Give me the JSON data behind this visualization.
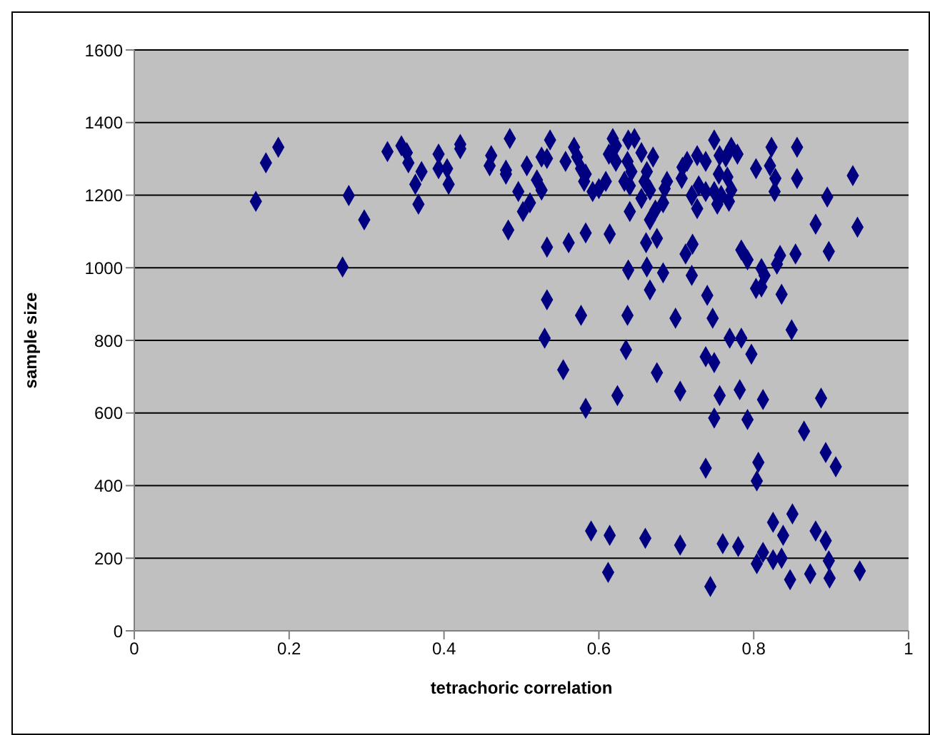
{
  "chart_data": {
    "type": "scatter",
    "xlabel": "tetrachoric correlation",
    "ylabel": "sample size",
    "xlim": [
      0,
      1
    ],
    "xticks": [
      0,
      0.2,
      0.4,
      0.6,
      0.8,
      1
    ],
    "ylim": [
      0,
      1600
    ],
    "yticks": [
      0,
      200,
      400,
      600,
      800,
      1000,
      1200,
      1400,
      1600
    ],
    "grid": "y",
    "marker": "diamond",
    "legend": false,
    "series": [
      {
        "color": "#000080",
        "x": [
          0.157,
          0.17,
          0.186,
          0.277,
          0.297,
          0.269,
          0.327,
          0.345,
          0.352,
          0.354,
          0.371,
          0.363,
          0.367,
          0.393,
          0.393,
          0.406,
          0.404,
          0.421,
          0.421,
          0.461,
          0.459,
          0.48,
          0.48,
          0.485,
          0.483,
          0.496,
          0.502,
          0.511,
          0.507,
          0.52,
          0.526,
          0.526,
          0.533,
          0.537,
          0.533,
          0.533,
          0.557,
          0.568,
          0.572,
          0.577,
          0.583,
          0.581,
          0.592,
          0.6,
          0.609,
          0.618,
          0.622,
          0.638,
          0.646,
          0.613,
          0.622,
          0.637,
          0.642,
          0.633,
          0.64,
          0.655,
          0.67,
          0.662,
          0.659,
          0.666,
          0.655,
          0.64,
          0.683,
          0.673,
          0.666,
          0.688,
          0.685,
          0.707,
          0.708,
          0.714,
          0.727,
          0.738,
          0.749,
          0.72,
          0.729,
          0.727,
          0.738,
          0.749,
          0.753,
          0.758,
          0.768,
          0.771,
          0.755,
          0.766,
          0.756,
          0.764,
          0.771,
          0.779,
          0.803,
          0.821,
          0.823,
          0.828,
          0.827,
          0.856,
          0.856,
          0.928,
          0.895,
          0.88,
          0.934,
          0.897,
          0.561,
          0.583,
          0.614,
          0.661,
          0.675,
          0.638,
          0.662,
          0.683,
          0.666,
          0.712,
          0.721,
          0.72,
          0.74,
          0.784,
          0.792,
          0.81,
          0.814,
          0.803,
          0.81,
          0.83,
          0.834,
          0.854,
          0.836,
          0.577,
          0.637,
          0.699,
          0.747,
          0.849,
          0.769,
          0.784,
          0.53,
          0.635,
          0.554,
          0.675,
          0.738,
          0.749,
          0.797,
          0.624,
          0.705,
          0.756,
          0.782,
          0.812,
          0.887,
          0.583,
          0.749,
          0.792,
          0.865,
          0.893,
          0.906,
          0.738,
          0.806,
          0.804,
          0.59,
          0.614,
          0.612,
          0.66,
          0.705,
          0.76,
          0.78,
          0.744,
          0.804,
          0.812,
          0.825,
          0.825,
          0.836,
          0.838,
          0.847,
          0.85,
          0.873,
          0.88,
          0.893,
          0.897,
          0.898,
          0.937
        ],
        "values": [
          1183,
          1289,
          1332,
          1199,
          1132,
          1002,
          1320,
          1336,
          1317,
          1289,
          1265,
          1230,
          1175,
          1313,
          1273,
          1230,
          1273,
          1340,
          1328,
          1309,
          1281,
          1269,
          1258,
          1356,
          1104,
          1210,
          1155,
          1179,
          1281,
          1242,
          1214,
          1305,
          1301,
          1352,
          1057,
          912,
          1293,
          1332,
          1305,
          1273,
          1258,
          1238,
          1210,
          1218,
          1238,
          1356,
          1336,
          1352,
          1356,
          1313,
          1293,
          1293,
          1265,
          1238,
          1226,
          1317,
          1305,
          1265,
          1238,
          1214,
          1191,
          1155,
          1179,
          1159,
          1132,
          1238,
          1218,
          1246,
          1277,
          1293,
          1309,
          1293,
          1352,
          1199,
          1226,
          1163,
          1210,
          1210,
          1175,
          1199,
          1183,
          1214,
          1258,
          1250,
          1309,
          1305,
          1332,
          1313,
          1273,
          1281,
          1332,
          1246,
          1210,
          1332,
          1246,
          1254,
          1195,
          1120,
          1112,
          1045,
          1069,
          1096,
          1093,
          1069,
          1081,
          994,
          1002,
          986,
          939,
          1038,
          1065,
          979,
          924,
          1049,
          1022,
          998,
          979,
          943,
          947,
          1010,
          1034,
          1038,
          927,
          869,
          869,
          861,
          861,
          829,
          806,
          806,
          806,
          774,
          719,
          711,
          755,
          739,
          762,
          648,
          660,
          648,
          664,
          637,
          641,
          613,
          586,
          582,
          550,
          491,
          452,
          448,
          464,
          413,
          275,
          263,
          161,
          255,
          236,
          240,
          232,
          122,
          185,
          216,
          299,
          196,
          200,
          263,
          141,
          322,
          157,
          275,
          248,
          193,
          145,
          165
        ]
      }
    ]
  }
}
